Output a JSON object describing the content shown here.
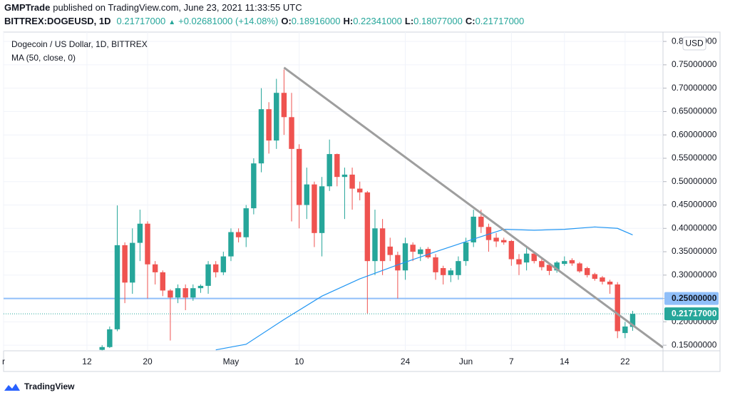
{
  "header": {
    "publisher": "GMPTrade",
    "published": "published on TradingView.com, June 23, 2021 11:33:55 UTC",
    "symbol": "BITTREX:DOGEUSD, 1D",
    "price": "0.21717000",
    "change_arrow": "▲",
    "change": "+0.02681000 (+14.08%)",
    "ohlc": [
      {
        "label": "O:",
        "value": "0.18916000"
      },
      {
        "label": "H:",
        "value": "0.22341000"
      },
      {
        "label": "L:",
        "value": "0.18077000"
      },
      {
        "label": "C:",
        "value": "0.21717000"
      }
    ]
  },
  "chart_data": {
    "type": "candlestick",
    "title": "Dogecoin / US Dollar, 1D, BITTREX",
    "currency": "USD",
    "up_color": "#26a69a",
    "down_color": "#ef5350",
    "grid": true,
    "x": [
      "2021-04-14",
      "2021-04-15",
      "2021-04-16",
      "2021-04-17",
      "2021-04-18",
      "2021-04-19",
      "2021-04-20",
      "2021-04-21",
      "2021-04-22",
      "2021-04-23",
      "2021-04-24",
      "2021-04-25",
      "2021-04-26",
      "2021-04-27",
      "2021-04-28",
      "2021-04-29",
      "2021-04-30",
      "2021-05-01",
      "2021-05-02",
      "2021-05-03",
      "2021-05-04",
      "2021-05-05",
      "2021-05-06",
      "2021-05-07",
      "2021-05-08",
      "2021-05-09",
      "2021-05-10",
      "2021-05-11",
      "2021-05-12",
      "2021-05-13",
      "2021-05-14",
      "2021-05-15",
      "2021-05-16",
      "2021-05-17",
      "2021-05-18",
      "2021-05-19",
      "2021-05-20",
      "2021-05-21",
      "2021-05-22",
      "2021-05-23",
      "2021-05-24",
      "2021-05-25",
      "2021-05-26",
      "2021-05-27",
      "2021-05-28",
      "2021-05-29",
      "2021-05-30",
      "2021-05-31",
      "2021-06-01",
      "2021-06-02",
      "2021-06-03",
      "2021-06-04",
      "2021-06-05",
      "2021-06-06",
      "2021-06-07",
      "2021-06-08",
      "2021-06-09",
      "2021-06-10",
      "2021-06-11",
      "2021-06-12",
      "2021-06-13",
      "2021-06-14",
      "2021-06-15",
      "2021-06-16",
      "2021-06-17",
      "2021-06-18",
      "2021-06-19",
      "2021-06-20",
      "2021-06-21",
      "2021-06-22",
      "2021-06-23"
    ],
    "open": [
      0.14,
      0.146,
      0.184,
      0.364,
      0.284,
      0.369,
      0.41,
      0.323,
      0.306,
      0.267,
      0.252,
      0.272,
      0.252,
      0.272,
      0.277,
      0.323,
      0.306,
      0.34,
      0.392,
      0.381,
      0.443,
      0.539,
      0.655,
      0.588,
      0.69,
      0.638,
      0.57,
      0.45,
      0.494,
      0.39,
      0.49,
      0.559,
      0.51,
      0.515,
      0.485,
      0.477,
      0.33,
      0.4,
      0.361,
      0.343,
      0.31,
      0.365,
      0.345,
      0.356,
      0.338,
      0.315,
      0.3,
      0.3,
      0.33,
      0.37,
      0.425,
      0.403,
      0.38,
      0.375,
      0.373,
      0.334,
      0.327,
      0.346,
      0.33,
      0.322,
      0.31,
      0.324,
      0.332,
      0.325,
      0.315,
      0.302,
      0.295,
      0.286,
      0.28,
      0.176,
      0.18916
    ],
    "high": [
      0.15,
      0.19,
      0.449,
      0.37,
      0.4,
      0.44,
      0.415,
      0.33,
      0.31,
      0.27,
      0.28,
      0.28,
      0.28,
      0.28,
      0.33,
      0.33,
      0.35,
      0.4,
      0.4,
      0.45,
      0.55,
      0.7,
      0.67,
      0.72,
      0.74,
      0.69,
      0.58,
      0.53,
      0.5,
      0.51,
      0.59,
      0.56,
      0.53,
      0.53,
      0.5,
      0.48,
      0.44,
      0.42,
      0.38,
      0.35,
      0.38,
      0.37,
      0.36,
      0.36,
      0.345,
      0.32,
      0.315,
      0.34,
      0.38,
      0.44,
      0.44,
      0.41,
      0.39,
      0.38,
      0.375,
      0.345,
      0.36,
      0.35,
      0.335,
      0.325,
      0.33,
      0.34,
      0.336,
      0.328,
      0.318,
      0.305,
      0.298,
      0.29,
      0.285,
      0.2,
      0.22341
    ],
    "low": [
      0.139,
      0.144,
      0.18,
      0.24,
      0.26,
      0.33,
      0.25,
      0.28,
      0.255,
      0.16,
      0.24,
      0.225,
      0.245,
      0.262,
      0.26,
      0.295,
      0.3,
      0.33,
      0.37,
      0.36,
      0.43,
      0.52,
      0.56,
      0.57,
      0.6,
      0.415,
      0.4,
      0.42,
      0.36,
      0.34,
      0.48,
      0.49,
      0.42,
      0.44,
      0.46,
      0.218,
      0.3,
      0.3,
      0.33,
      0.25,
      0.29,
      0.33,
      0.33,
      0.335,
      0.29,
      0.28,
      0.285,
      0.29,
      0.32,
      0.36,
      0.39,
      0.35,
      0.36,
      0.365,
      0.32,
      0.3,
      0.31,
      0.325,
      0.31,
      0.3,
      0.305,
      0.32,
      0.32,
      0.305,
      0.295,
      0.288,
      0.28,
      0.26,
      0.165,
      0.165,
      0.18077
    ],
    "close": [
      0.146,
      0.184,
      0.364,
      0.284,
      0.369,
      0.41,
      0.323,
      0.306,
      0.267,
      0.252,
      0.272,
      0.252,
      0.272,
      0.277,
      0.323,
      0.306,
      0.34,
      0.392,
      0.381,
      0.443,
      0.539,
      0.655,
      0.588,
      0.69,
      0.638,
      0.57,
      0.45,
      0.494,
      0.39,
      0.49,
      0.559,
      0.51,
      0.515,
      0.485,
      0.477,
      0.33,
      0.4,
      0.33,
      0.343,
      0.31,
      0.368,
      0.35,
      0.355,
      0.338,
      0.306,
      0.3,
      0.31,
      0.33,
      0.37,
      0.425,
      0.403,
      0.375,
      0.372,
      0.37,
      0.334,
      0.323,
      0.346,
      0.33,
      0.317,
      0.309,
      0.327,
      0.33,
      0.325,
      0.308,
      0.3,
      0.292,
      0.286,
      0.28,
      0.18,
      0.19,
      0.21717
    ],
    "ma": {
      "name": "MA (50, close, 0)",
      "color": "#2196f3",
      "x": [
        "2021-04-29",
        "2021-05-03",
        "2021-05-08",
        "2021-05-13",
        "2021-05-18",
        "2021-05-23",
        "2021-05-28",
        "2021-06-02",
        "2021-06-06",
        "2021-06-10",
        "2021-06-14",
        "2021-06-18",
        "2021-06-21",
        "2021-06-23"
      ],
      "values": [
        0.14,
        0.152,
        0.205,
        0.255,
        0.292,
        0.322,
        0.35,
        0.377,
        0.398,
        0.396,
        0.398,
        0.403,
        0.4,
        0.386
      ]
    },
    "trendline": {
      "color": "#9e9e9e",
      "x": [
        "2021-05-08",
        "2021-06-27"
      ],
      "values": [
        0.744,
        0.145
      ]
    },
    "hline": {
      "value": 0.25,
      "label": "0.25000000",
      "color": "#90bff9"
    },
    "last_price": {
      "value": 0.21717,
      "label": "0.21717000"
    },
    "xlim": [
      "2021-04-01",
      "2021-06-27"
    ],
    "xticks": [
      {
        "value": "2021-04-01",
        "label": "r"
      },
      {
        "value": "2021-04-12",
        "label": "12"
      },
      {
        "value": "2021-04-20",
        "label": "20"
      },
      {
        "value": "2021-05-01",
        "label": "May"
      },
      {
        "value": "2021-05-10",
        "label": "10"
      },
      {
        "value": "2021-05-24",
        "label": "24"
      },
      {
        "value": "2021-06-01",
        "label": "Jun"
      },
      {
        "value": "2021-06-07",
        "label": "7"
      },
      {
        "value": "2021-06-14",
        "label": "14"
      },
      {
        "value": "2021-06-22",
        "label": "22"
      }
    ],
    "ylim": [
      0.138,
      0.82
    ],
    "yticks": [
      {
        "value": 0.15,
        "label": "0.15000000"
      },
      {
        "value": 0.2,
        "label": "0.20000000"
      },
      {
        "value": 0.25,
        "label": "0.25000000"
      },
      {
        "value": 0.3,
        "label": "0.30000000"
      },
      {
        "value": 0.35,
        "label": "0.35000000"
      },
      {
        "value": 0.4,
        "label": "0.40000000"
      },
      {
        "value": 0.45,
        "label": "0.45000000"
      },
      {
        "value": 0.5,
        "label": "0.50000000"
      },
      {
        "value": 0.55,
        "label": "0.55000000"
      },
      {
        "value": 0.6,
        "label": "0.60000000"
      },
      {
        "value": 0.65,
        "label": "0.65000000"
      },
      {
        "value": 0.7,
        "label": "0.70000000"
      },
      {
        "value": 0.75,
        "label": "0.75000000"
      },
      {
        "value": 0.8,
        "label": "0.80000000"
      }
    ]
  },
  "footer": {
    "brand": "TradingView"
  }
}
